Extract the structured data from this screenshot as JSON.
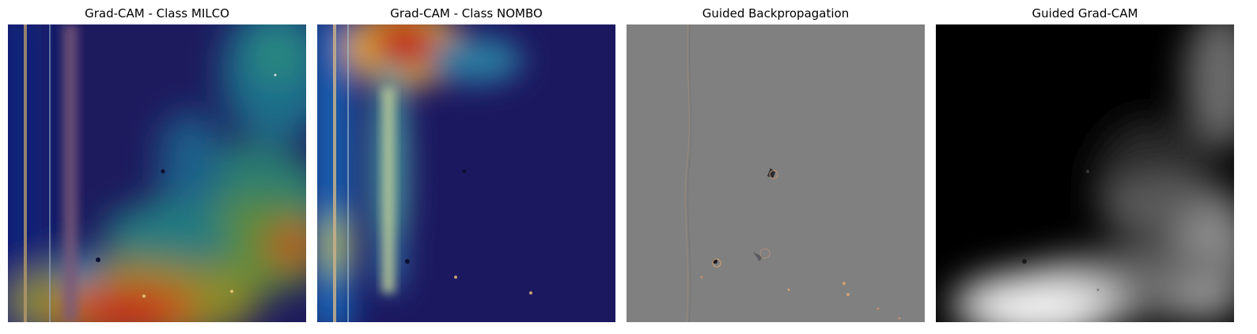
{
  "figure": {
    "panels": [
      {
        "title": "Grad-CAM - Class MILCO"
      },
      {
        "title": "Grad-CAM - Class NOMBO"
      },
      {
        "title": "Guided Backpropagation"
      },
      {
        "title": "Guided Grad-CAM"
      }
    ]
  }
}
